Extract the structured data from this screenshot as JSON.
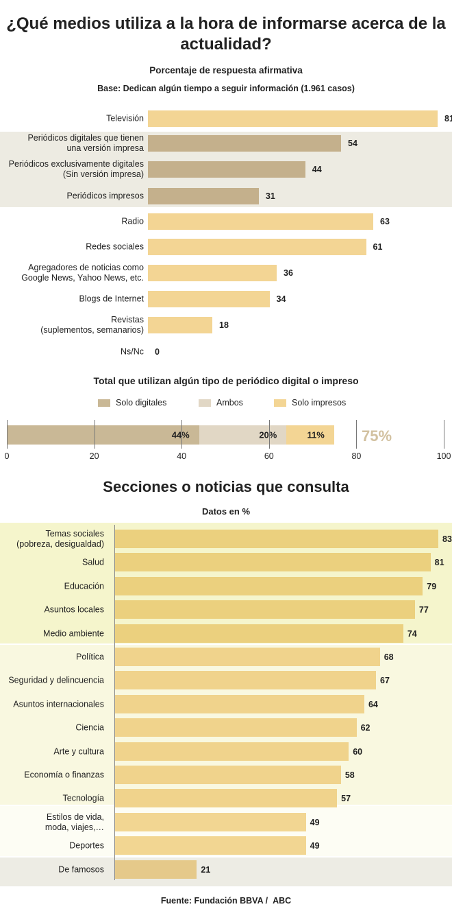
{
  "colors": {
    "tv": "#f3d594",
    "digital": "#c4b08c",
    "dig_bg": "#edebe2",
    "s_solo_dig": "#c9b896",
    "s_ambos": "#e1d7c5",
    "s_solo_imp": "#f3d594",
    "pct_big": "#d2c1a0",
    "g1_bg": "#f5f5cc",
    "g1_bar": "#ebd07e",
    "g2_bg": "#f9f8e0",
    "g2_bar": "#f0d38c",
    "g3_bg": "#fdfdf4",
    "g3_bar": "#f2d692",
    "g4_bg": "#edece4",
    "g4_bar": "#e5c98a"
  },
  "chart_data": [
    {
      "type": "bar",
      "title": "¿Qué medios utiliza a la hora de informarse acerca de la actualidad?",
      "subtitle": "Porcentaje de respuesta afirmativa",
      "note": "Base: Dedican algún tiempo a seguir información (1.961 casos)",
      "categories": [
        "Televisión",
        "Periódicos digitales que tienen una versión impresa",
        "Periódicos exclusivamente digitales (Sin versión impresa)",
        "Periódicos impresos",
        "Radio",
        "Redes sociales",
        "Agregadores de noticias como Google News, Yahoo News, etc.",
        "Blogs de Internet",
        "Revistas (suplementos, semanarios)",
        "Ns/Nc"
      ],
      "labels": [
        [
          "Televisión"
        ],
        [
          "Periódicos digitales que tienen",
          "una versión impresa"
        ],
        [
          "Periódicos exclusivamente digitales",
          "(Sin versión impresa)"
        ],
        [
          "Periódicos impresos"
        ],
        [
          "Radio"
        ],
        [
          "Redes sociales"
        ],
        [
          "Agregadores de noticias como",
          "Google News, Yahoo News, etc."
        ],
        [
          "Blogs de Internet"
        ],
        [
          "Revistas",
          "(suplementos, semanarios)"
        ],
        [
          "Ns/Nc"
        ]
      ],
      "values": [
        81,
        54,
        44,
        31,
        63,
        61,
        36,
        34,
        18,
        0
      ],
      "highlight": [
        false,
        true,
        true,
        true,
        false,
        false,
        false,
        false,
        false,
        false
      ],
      "xlim": [
        0,
        100
      ]
    },
    {
      "type": "bar",
      "stacked": true,
      "title": "Total que utilizan algún tipo de periódico digital o impreso",
      "series": [
        {
          "name": "Solo digitales",
          "value": 44,
          "label": "44%"
        },
        {
          "name": "Ambos",
          "value": 20,
          "label": "20%"
        },
        {
          "name": "Solo impresos",
          "value": 11,
          "label": "11%"
        }
      ],
      "total_label": "75%",
      "xticks": [
        0,
        20,
        40,
        60,
        80,
        100
      ],
      "xlim": [
        0,
        100
      ],
      "legend": "top"
    },
    {
      "type": "bar",
      "title": "Secciones o noticias que consulta",
      "subtitle": "Datos en %",
      "categories": [
        "Temas sociales (pobreza, desigualdad)",
        "Salud",
        "Educación",
        "Asuntos locales",
        "Medio ambiente",
        "Política",
        "Seguridad y delincuencia",
        "Asuntos internacionales",
        "Ciencia",
        "Arte y cultura",
        "Economía o finanzas",
        "Tecnología",
        "Estilos de vida, moda, viajes,…",
        "Deportes",
        "De famosos"
      ],
      "labels": [
        [
          "Temas sociales",
          "(pobreza, desigualdad)"
        ],
        [
          "Salud"
        ],
        [
          "Educación"
        ],
        [
          "Asuntos locales"
        ],
        [
          "Medio ambiente"
        ],
        [
          "Política"
        ],
        [
          "Seguridad y delincuencia"
        ],
        [
          "Asuntos internacionales"
        ],
        [
          "Ciencia"
        ],
        [
          "Arte y cultura"
        ],
        [
          "Economía o finanzas"
        ],
        [
          "Tecnología"
        ],
        [
          "Estilos de vida,",
          "moda, viajes,…"
        ],
        [
          "Deportes"
        ],
        [
          "De famosos"
        ]
      ],
      "values": [
        83,
        81,
        79,
        77,
        74,
        68,
        67,
        64,
        62,
        60,
        58,
        57,
        49,
        49,
        21
      ],
      "groups": [
        1,
        1,
        1,
        1,
        1,
        2,
        2,
        2,
        2,
        2,
        2,
        2,
        3,
        3,
        4
      ]
    }
  ],
  "footer": {
    "source_label": "Fuente:",
    "source": "Fundación BBVA  /",
    "brand": "ABC"
  }
}
